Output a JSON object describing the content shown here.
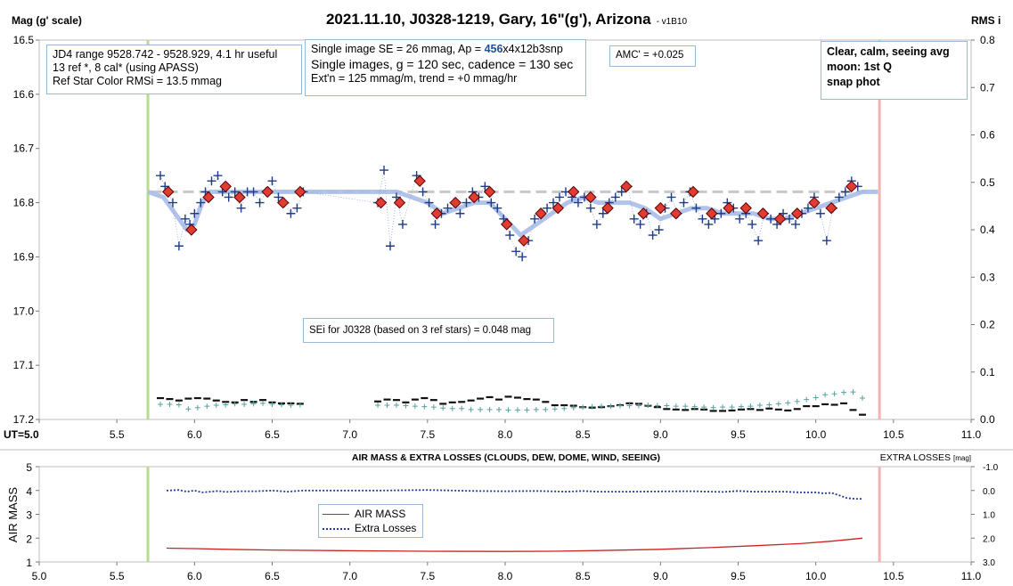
{
  "title": "2021.11.10, J0328-1219, Gary, 16\"(g'), Arizona",
  "version": "- v1B10",
  "top_left_axis_label": "Mag (g' scale)",
  "top_right_axis_label": "RMS i",
  "ut_label": "UT=",
  "boxes": {
    "info1": [
      "JD4 range 9528.742 - 9528.929, 4.1 hr useful",
      "13 ref *, 8 cal* (using APASS)",
      "Ref Star Color RMSi = 13.5 mmag"
    ],
    "info2": {
      "line1_pre": "Single image SE = 26 mmag, Ap = ",
      "ap_value": "456",
      "line1_post": "x4x12b3snp",
      "line2": "Single images, g = 120 sec, cadence = 130 sec",
      "line3": "Ext'n = 125 mmag/m, trend = +0 mmag/hr"
    },
    "amc": "AMC' = +0.025",
    "conditions": [
      "Clear, calm, seeing avg",
      "moon: 1st Q",
      "snap phot"
    ],
    "sei": "SEi for J0328 (based on 3 ref stars) = 0.048 mag"
  },
  "colors": {
    "diamond": "#e03c31",
    "plus": "#1f3c8c",
    "smooth": "#a9bde8",
    "ref_dash": "#c8c8c8",
    "start_line": "#b7dd8c",
    "end_line": "#f2b3b3",
    "rms_teal": "#5aa0a0",
    "airmass": "#cc2222",
    "losses": "#1f3c9c"
  },
  "chart_data": [
    {
      "type": "scatter",
      "title": "2021.11.10, J0328-1219, Gary, 16\"(g'), Arizona",
      "ylabel": "Mag (g' scale)",
      "y2label": "RMS i",
      "xlabel": "UT=",
      "xlim": [
        5.0,
        11.0
      ],
      "ylim": [
        17.2,
        16.5
      ],
      "y2lim": [
        0.0,
        0.8
      ],
      "x_ticks": [
        "5.0",
        "5.5",
        "6.0",
        "6.5",
        "7.0",
        "7.5",
        "8.0",
        "8.5",
        "9.0",
        "9.5",
        "10.0",
        "10.5",
        "11.0"
      ],
      "y_ticks": [
        "16.5",
        "16.6",
        "16.7",
        "16.8",
        "16.9",
        "17.0",
        "17.1",
        "17.2"
      ],
      "y2_ticks": [
        "0.8",
        "0.7",
        "0.6",
        "0.5",
        "0.4",
        "0.3",
        "0.2",
        "0.1",
        "0.0"
      ],
      "grid": false,
      "start_ut": 5.7,
      "end_ut": 10.41,
      "reference_mag": 16.78,
      "smooth_curve": {
        "x": [
          5.7,
          5.8,
          5.9,
          5.95,
          6.0,
          6.05,
          6.1,
          6.15,
          6.2,
          6.3,
          6.5,
          6.7,
          7.0,
          7.2,
          7.3,
          7.5,
          7.6,
          7.7,
          7.8,
          7.9,
          8.0,
          8.1,
          8.2,
          8.3,
          8.4,
          8.5,
          8.6,
          8.7,
          8.8,
          8.9,
          9.0,
          9.1,
          9.2,
          9.3,
          9.4,
          9.5,
          9.6,
          9.7,
          9.8,
          9.9,
          10.0,
          10.1,
          10.2,
          10.3,
          10.4
        ],
        "y": [
          16.78,
          16.79,
          16.83,
          16.85,
          16.84,
          16.8,
          16.78,
          16.78,
          16.78,
          16.78,
          16.78,
          16.78,
          16.78,
          16.78,
          16.78,
          16.8,
          16.82,
          16.81,
          16.8,
          16.8,
          16.83,
          16.86,
          16.84,
          16.82,
          16.8,
          16.79,
          16.8,
          16.8,
          16.8,
          16.81,
          16.83,
          16.82,
          16.81,
          16.81,
          16.82,
          16.82,
          16.82,
          16.83,
          16.83,
          16.82,
          16.81,
          16.8,
          16.79,
          16.78,
          16.78
        ]
      },
      "series": [
        {
          "name": "binned",
          "marker": "diamond",
          "x": [
            5.83,
            5.98,
            6.09,
            6.2,
            6.29,
            6.47,
            6.57,
            6.68,
            7.2,
            7.32,
            7.45,
            7.56,
            7.68,
            7.8,
            7.9,
            8.01,
            8.12,
            8.23,
            8.34,
            8.44,
            8.55,
            8.66,
            8.78,
            8.89,
            9.0,
            9.1,
            9.21,
            9.33,
            9.44,
            9.55,
            9.66,
            9.77,
            9.88,
            9.99,
            10.1,
            10.23
          ],
          "y": [
            16.78,
            16.85,
            16.79,
            16.77,
            16.79,
            16.78,
            16.8,
            16.78,
            16.8,
            16.8,
            16.76,
            16.82,
            16.8,
            16.79,
            16.78,
            16.84,
            16.87,
            16.82,
            16.81,
            16.78,
            16.79,
            16.81,
            16.77,
            16.82,
            16.81,
            16.82,
            16.78,
            16.82,
            16.81,
            16.81,
            16.82,
            16.83,
            16.82,
            16.8,
            16.81,
            16.77
          ]
        },
        {
          "name": "single",
          "marker": "plus",
          "x": [
            5.78,
            5.81,
            5.86,
            5.9,
            5.94,
            5.97,
            6.0,
            6.04,
            6.07,
            6.11,
            6.15,
            6.18,
            6.22,
            6.26,
            6.3,
            6.34,
            6.38,
            6.42,
            6.46,
            6.5,
            6.54,
            6.58,
            6.62,
            6.66,
            6.7,
            7.18,
            7.22,
            7.26,
            7.3,
            7.34,
            7.43,
            7.47,
            7.51,
            7.55,
            7.59,
            7.63,
            7.67,
            7.71,
            7.75,
            7.79,
            7.83,
            7.87,
            7.91,
            7.95,
            7.99,
            8.03,
            8.07,
            8.11,
            8.15,
            8.19,
            8.23,
            8.27,
            8.31,
            8.35,
            8.39,
            8.43,
            8.47,
            8.51,
            8.55,
            8.59,
            8.63,
            8.67,
            8.71,
            8.75,
            8.79,
            8.83,
            8.87,
            8.91,
            8.95,
            8.99,
            9.03,
            9.07,
            9.11,
            9.15,
            9.19,
            9.23,
            9.27,
            9.31,
            9.35,
            9.39,
            9.43,
            9.47,
            9.51,
            9.55,
            9.59,
            9.63,
            9.67,
            9.71,
            9.75,
            9.79,
            9.83,
            9.87,
            9.91,
            9.95,
            9.99,
            10.03,
            10.07,
            10.11,
            10.15,
            10.19,
            10.23,
            10.27
          ],
          "y": [
            16.75,
            16.77,
            16.8,
            16.88,
            16.83,
            16.84,
            16.82,
            16.8,
            16.78,
            16.76,
            16.75,
            16.78,
            16.79,
            16.78,
            16.81,
            16.78,
            16.78,
            16.8,
            16.78,
            16.76,
            16.79,
            16.8,
            16.82,
            16.81,
            16.78,
            16.8,
            16.74,
            16.88,
            16.79,
            16.84,
            16.75,
            16.78,
            16.8,
            16.84,
            16.82,
            16.81,
            16.8,
            16.82,
            16.8,
            16.78,
            16.79,
            16.77,
            16.8,
            16.81,
            16.83,
            16.86,
            16.89,
            16.9,
            16.87,
            16.83,
            16.82,
            16.81,
            16.8,
            16.79,
            16.78,
            16.79,
            16.8,
            16.79,
            16.81,
            16.84,
            16.82,
            16.8,
            16.79,
            16.78,
            16.77,
            16.83,
            16.84,
            16.82,
            16.86,
            16.85,
            16.81,
            16.79,
            16.82,
            16.8,
            16.78,
            16.81,
            16.83,
            16.84,
            16.83,
            16.82,
            16.8,
            16.81,
            16.83,
            16.82,
            16.84,
            16.87,
            16.82,
            16.83,
            16.84,
            16.82,
            16.83,
            16.84,
            16.82,
            16.81,
            16.79,
            16.82,
            16.87,
            16.81,
            16.79,
            16.78,
            16.76,
            16.77
          ]
        },
        {
          "name": "rms_black",
          "axis": "right",
          "marker": "dash",
          "x": [
            5.78,
            5.84,
            5.9,
            5.96,
            6.02,
            6.08,
            6.14,
            6.2,
            6.26,
            6.32,
            6.38,
            6.44,
            6.5,
            6.56,
            6.62,
            6.68,
            7.18,
            7.24,
            7.3,
            7.36,
            7.42,
            7.48,
            7.54,
            7.6,
            7.66,
            7.72,
            7.78,
            7.84,
            7.9,
            7.96,
            8.02,
            8.08,
            8.14,
            8.2,
            8.26,
            8.32,
            8.38,
            8.44,
            8.5,
            8.56,
            8.62,
            8.68,
            8.74,
            8.8,
            8.86,
            8.92,
            8.98,
            9.04,
            9.1,
            9.16,
            9.22,
            9.28,
            9.34,
            9.4,
            9.46,
            9.52,
            9.58,
            9.64,
            9.7,
            9.76,
            9.82,
            9.88,
            9.94,
            10.0,
            10.06,
            10.12,
            10.18,
            10.24,
            10.3
          ],
          "y": [
            0.045,
            0.043,
            0.04,
            0.044,
            0.045,
            0.044,
            0.04,
            0.037,
            0.036,
            0.041,
            0.037,
            0.041,
            0.036,
            0.034,
            0.034,
            0.033,
            0.038,
            0.042,
            0.041,
            0.036,
            0.042,
            0.045,
            0.041,
            0.033,
            0.036,
            0.037,
            0.04,
            0.044,
            0.047,
            0.042,
            0.048,
            0.046,
            0.043,
            0.042,
            0.037,
            0.03,
            0.03,
            0.029,
            0.026,
            0.025,
            0.026,
            0.028,
            0.03,
            0.034,
            0.033,
            0.029,
            0.026,
            0.022,
            0.021,
            0.02,
            0.022,
            0.021,
            0.018,
            0.018,
            0.019,
            0.021,
            0.022,
            0.02,
            0.023,
            0.021,
            0.019,
            0.022,
            0.028,
            0.028,
            0.032,
            0.031,
            0.034,
            0.02,
            0.01
          ]
        },
        {
          "name": "rms_teal",
          "axis": "right",
          "marker": "plus-small",
          "x": [
            5.78,
            5.84,
            5.9,
            5.96,
            6.02,
            6.08,
            6.14,
            6.2,
            6.26,
            6.32,
            6.38,
            6.44,
            6.5,
            6.56,
            6.62,
            6.68,
            7.18,
            7.24,
            7.3,
            7.36,
            7.42,
            7.48,
            7.54,
            7.6,
            7.66,
            7.72,
            7.78,
            7.84,
            7.9,
            7.96,
            8.02,
            8.08,
            8.14,
            8.2,
            8.26,
            8.32,
            8.38,
            8.44,
            8.5,
            8.56,
            8.62,
            8.68,
            8.74,
            8.8,
            8.86,
            8.92,
            8.98,
            9.04,
            9.1,
            9.16,
            9.22,
            9.28,
            9.34,
            9.4,
            9.46,
            9.52,
            9.58,
            9.64,
            9.7,
            9.76,
            9.82,
            9.88,
            9.94,
            10.0,
            10.06,
            10.12,
            10.18,
            10.24,
            10.3
          ],
          "y": [
            0.032,
            0.032,
            0.031,
            0.022,
            0.025,
            0.028,
            0.03,
            0.031,
            0.033,
            0.032,
            0.033,
            0.034,
            0.032,
            0.031,
            0.03,
            0.031,
            0.03,
            0.03,
            0.03,
            0.029,
            0.028,
            0.027,
            0.026,
            0.024,
            0.023,
            0.023,
            0.021,
            0.021,
            0.021,
            0.021,
            0.02,
            0.02,
            0.02,
            0.021,
            0.021,
            0.022,
            0.023,
            0.025,
            0.026,
            0.027,
            0.028,
            0.028,
            0.029,
            0.029,
            0.029,
            0.03,
            0.029,
            0.029,
            0.028,
            0.028,
            0.027,
            0.026,
            0.025,
            0.026,
            0.026,
            0.027,
            0.028,
            0.03,
            0.031,
            0.033,
            0.035,
            0.038,
            0.042,
            0.046,
            0.052,
            0.054,
            0.057,
            0.058,
            0.045
          ]
        }
      ]
    },
    {
      "type": "line",
      "title": "AIR MASS & EXTRA LOSSES (CLOUDS, DEW, DOME, WIND, SEEING)",
      "ylabel": "AIR MASS",
      "y2label": "EXTRA LOSSES",
      "y2unit": "[mag]",
      "xlim": [
        5.0,
        11.0
      ],
      "ylim": [
        1,
        5
      ],
      "y2lim": [
        3.0,
        -1.0
      ],
      "x_ticks": [
        "5.0",
        "5.5",
        "6.0",
        "6.5",
        "7.0",
        "7.5",
        "8.0",
        "8.5",
        "9.0",
        "9.5",
        "10.0",
        "10.5",
        "11.0"
      ],
      "y_ticks": [
        "5",
        "4",
        "3",
        "2",
        "1"
      ],
      "y2_ticks": [
        "-1.0",
        "0.0",
        "1.0",
        "2.0",
        "3.0"
      ],
      "legend_position": "center-left",
      "series": [
        {
          "name": "AIR MASS",
          "axis": "left",
          "x": [
            5.82,
            6.0,
            6.2,
            6.5,
            7.0,
            7.5,
            8.0,
            8.3,
            8.6,
            9.0,
            9.3,
            9.6,
            9.9,
            10.1,
            10.3
          ],
          "y": [
            1.58,
            1.56,
            1.53,
            1.5,
            1.47,
            1.45,
            1.44,
            1.45,
            1.48,
            1.53,
            1.6,
            1.68,
            1.77,
            1.87,
            2.0
          ]
        },
        {
          "name": "Extra Losses",
          "axis": "right",
          "x": [
            5.82,
            5.9,
            5.95,
            6.0,
            6.05,
            6.1,
            6.15,
            6.2,
            6.3,
            6.4,
            6.5,
            6.6,
            6.7,
            7.2,
            7.5,
            7.8,
            8.0,
            8.2,
            8.4,
            8.5,
            8.6,
            8.8,
            9.0,
            9.2,
            9.4,
            9.5,
            9.6,
            9.8,
            9.9,
            10.0,
            10.05,
            10.1,
            10.15,
            10.2,
            10.25,
            10.3
          ],
          "y": [
            0.0,
            -0.02,
            0.05,
            0.0,
            0.08,
            0.05,
            0.02,
            0.06,
            0.03,
            0.03,
            0.0,
            0.05,
            0.0,
            0.0,
            -0.02,
            0.02,
            0.03,
            0.02,
            0.05,
            0.02,
            0.05,
            0.05,
            0.04,
            0.03,
            0.06,
            0.02,
            0.05,
            0.05,
            0.08,
            0.08,
            0.12,
            0.1,
            0.2,
            0.32,
            0.35,
            0.35
          ]
        }
      ]
    }
  ]
}
